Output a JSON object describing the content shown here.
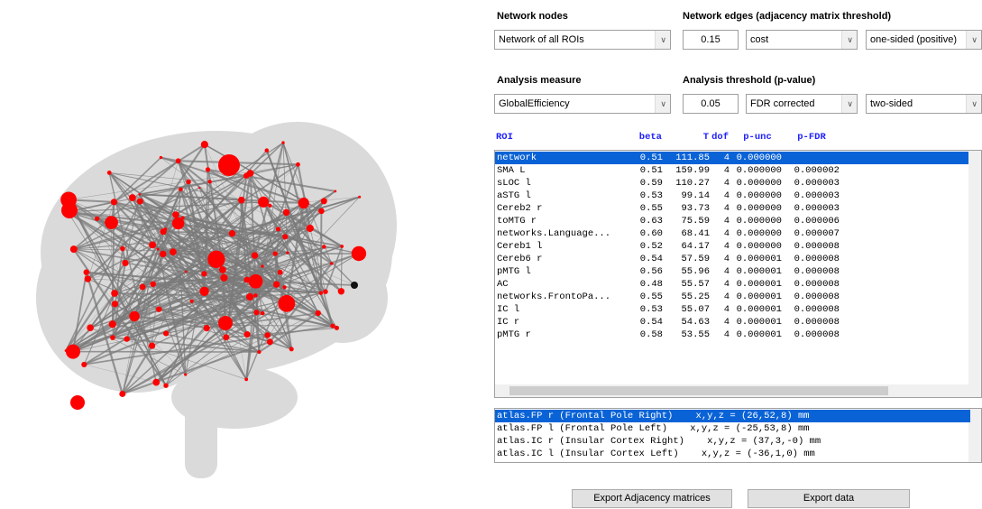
{
  "controls": {
    "network_nodes": {
      "label": "Network nodes",
      "value": "Network of all ROIs"
    },
    "network_edges": {
      "label": "Network edges (adjacency matrix threshold)",
      "threshold": "0.15",
      "measure": "cost",
      "side": "one-sided (positive)"
    },
    "analysis_measure": {
      "label": "Analysis measure",
      "value": "GlobalEfficiency"
    },
    "analysis_threshold": {
      "label": "Analysis threshold (p-value)",
      "threshold": "0.05",
      "correction": "FDR corrected",
      "side": "two-sided"
    }
  },
  "table": {
    "columns": [
      "ROI",
      "beta",
      "T",
      "dof",
      "p-unc",
      "p-FDR"
    ],
    "rows": [
      [
        "network",
        "0.51",
        "111.85",
        "4",
        "0.000000"
      ],
      [
        "SMA L",
        "0.51",
        "159.99",
        "4",
        "0.000000",
        "0.000002"
      ],
      [
        "sLOC l",
        "0.59",
        "110.27",
        "4",
        "0.000000",
        "0.000003"
      ],
      [
        "aSTG l",
        "0.53",
        "99.14",
        "4",
        "0.000000",
        "0.000003"
      ],
      [
        "Cereb2 r",
        "0.55",
        "93.73",
        "4",
        "0.000000",
        "0.000003"
      ],
      [
        "toMTG r",
        "0.63",
        "75.59",
        "4",
        "0.000000",
        "0.000006"
      ],
      [
        "networks.Language...",
        "0.60",
        "68.41",
        "4",
        "0.000000",
        "0.000007"
      ],
      [
        "Cereb1 l",
        "0.52",
        "64.17",
        "4",
        "0.000000",
        "0.000008"
      ],
      [
        "Cereb6 r",
        "0.54",
        "57.59",
        "4",
        "0.000001",
        "0.000008"
      ],
      [
        "pMTG l",
        "0.56",
        "55.96",
        "4",
        "0.000001",
        "0.000008"
      ],
      [
        "AC",
        "0.48",
        "55.57",
        "4",
        "0.000001",
        "0.000008"
      ],
      [
        "networks.FrontoPa...",
        "0.55",
        "55.25",
        "4",
        "0.000001",
        "0.000008"
      ],
      [
        "IC l",
        "0.53",
        "55.07",
        "4",
        "0.000001",
        "0.000008"
      ],
      [
        "IC r",
        "0.54",
        "54.63",
        "4",
        "0.000001",
        "0.000008"
      ],
      [
        "pMTG r",
        "0.58",
        "53.55",
        "4",
        "0.000001",
        "0.000008"
      ]
    ]
  },
  "atlas_list": [
    "atlas.FP r (Frontal Pole Right)    x,y,z = (26,52,8) mm",
    "atlas.FP l (Frontal Pole Left)    x,y,z = (-25,53,8) mm",
    "atlas.IC r (Insular Cortex Right)    x,y,z = (37,3,-0) mm",
    "atlas.IC l (Insular Cortex Left)    x,y,z = (-36,1,0) mm"
  ],
  "buttons": [
    "Export Adjacency matrices",
    "Export data"
  ]
}
